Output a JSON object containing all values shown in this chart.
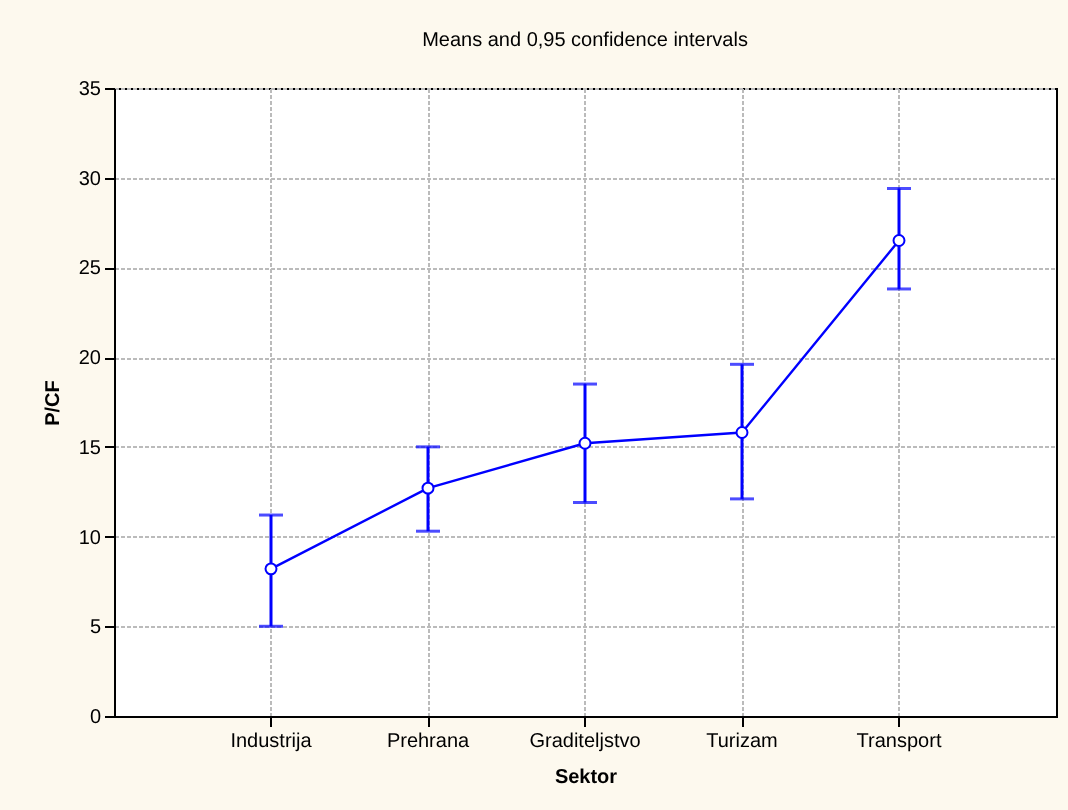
{
  "chart_data": {
    "type": "line",
    "title": "Means and 0,95 confidence intervals",
    "xlabel": "Sektor",
    "ylabel": "P/CF",
    "categories": [
      "Industrija",
      "Prehrana",
      "Graditeljstvo",
      "Turizam",
      "Transport"
    ],
    "series": [
      {
        "color": "#0000ff",
        "values": [
          8.2,
          12.7,
          15.2,
          15.8,
          26.5
        ],
        "errors": [
          [
            5.0,
            11.2
          ],
          [
            10.3,
            15.0
          ],
          [
            11.9,
            18.5
          ],
          [
            12.1,
            19.6
          ],
          [
            23.8,
            29.4
          ]
        ]
      }
    ],
    "ylim": [
      0,
      35
    ],
    "yticks": [
      0,
      5,
      10,
      15,
      20,
      25,
      30,
      35
    ],
    "grid": true,
    "marker": "circle",
    "line_style": "solid"
  }
}
